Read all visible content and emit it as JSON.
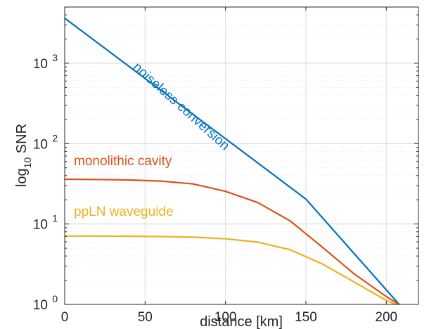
{
  "chart_data": {
    "type": "line",
    "xlabel": "distance [km]",
    "ylabel_main": "log",
    "ylabel_sub": "10",
    "ylabel_tail": " SNR",
    "xlim": [
      0,
      220
    ],
    "ylim": [
      1,
      5000
    ],
    "yscale": "log",
    "grid": true,
    "x_ticks": [
      {
        "value": 0,
        "label": "0"
      },
      {
        "value": 50,
        "label": "50"
      },
      {
        "value": 100,
        "label": "100"
      },
      {
        "value": 150,
        "label": "150"
      },
      {
        "value": 200,
        "label": "200"
      }
    ],
    "y_ticks": [
      {
        "value": 1,
        "base": "10",
        "exp": "0"
      },
      {
        "value": 10,
        "base": "10",
        "exp": "1"
      },
      {
        "value": 100,
        "base": "10",
        "exp": "2"
      },
      {
        "value": 1000,
        "base": "10",
        "exp": "3"
      }
    ],
    "series": [
      {
        "name": "noiseless conversion",
        "color": "#0072BD",
        "x": [
          0,
          50,
          100,
          150,
          208
        ],
        "y": [
          3630,
          646,
          115,
          20.4,
          1.0
        ]
      },
      {
        "name": "monolithic cavity",
        "color": "#D95319",
        "x": [
          0,
          20,
          40,
          60,
          80,
          100,
          120,
          140,
          160,
          180,
          200,
          208
        ],
        "y": [
          36,
          35.8,
          35.3,
          34.2,
          31.5,
          25.5,
          18.5,
          11.0,
          5.2,
          2.4,
          1.25,
          1.0
        ]
      },
      {
        "name": "ppLN waveguide",
        "color": "#EDB120",
        "x": [
          0,
          20,
          40,
          60,
          80,
          100,
          120,
          140,
          160,
          180,
          200,
          206
        ],
        "y": [
          7.1,
          7.08,
          7.05,
          6.98,
          6.85,
          6.55,
          5.95,
          4.8,
          3.2,
          1.9,
          1.12,
          1.0
        ]
      }
    ]
  }
}
